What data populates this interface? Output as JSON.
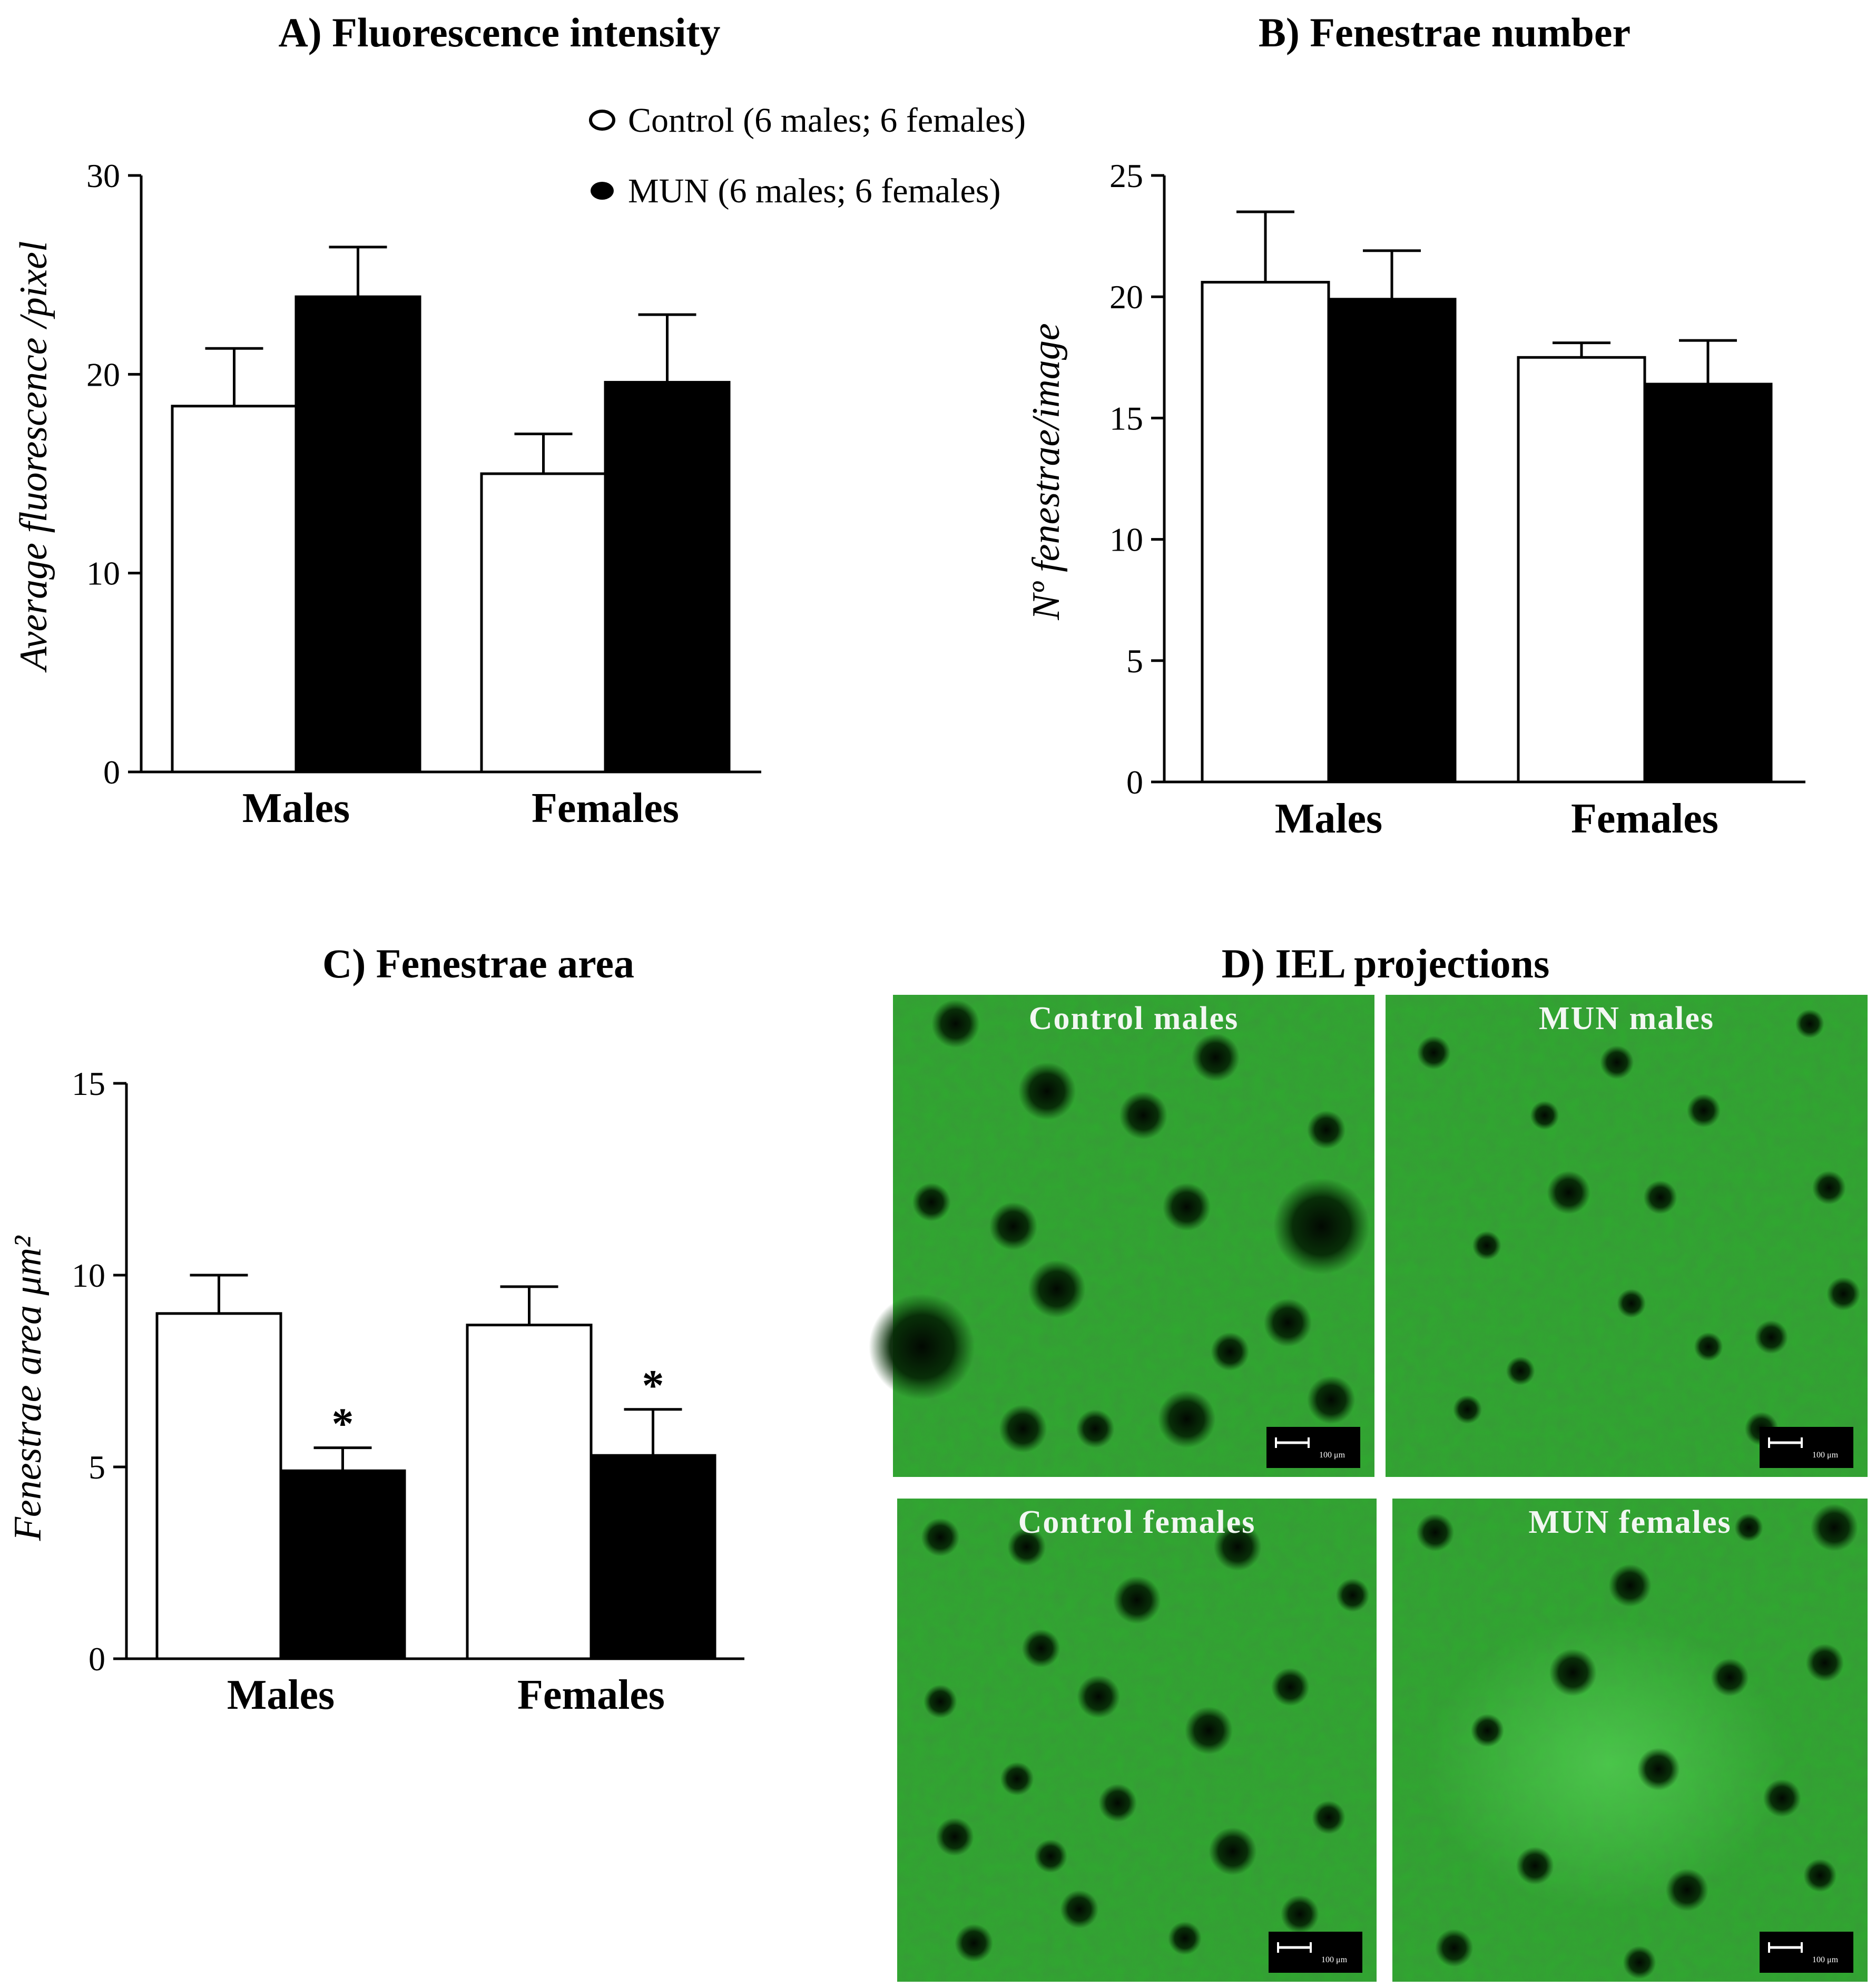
{
  "legend": {
    "control_label": "Control (6 males; 6 females)",
    "mun_label": "MUN (6 males; 6 females)"
  },
  "colors": {
    "control": "#ffffff",
    "mun": "#000000",
    "micrograph_green": "#2fa92f"
  },
  "chart_data": [
    {
      "id": "A",
      "type": "bar",
      "title": "A) Fluorescence  intensity",
      "ylabel": "Average fluorescence /pixel",
      "categories": [
        "Males",
        "Females"
      ],
      "ylim": [
        0,
        30
      ],
      "yticks": [
        0,
        10,
        20,
        30
      ],
      "series": [
        {
          "name": "Control (6 males; 6 females)",
          "values": [
            18.4,
            15.0
          ],
          "errors": [
            2.9,
            2.0
          ]
        },
        {
          "name": "MUN (6 males; 6 females)",
          "values": [
            23.9,
            19.6
          ],
          "errors": [
            2.5,
            3.4
          ]
        }
      ],
      "annotations": []
    },
    {
      "id": "B",
      "type": "bar",
      "title": "B) Fenestrae number",
      "ylabel": "Nº fenestrae/image",
      "categories": [
        "Males",
        "Females"
      ],
      "ylim": [
        0,
        25
      ],
      "yticks": [
        0,
        5,
        10,
        15,
        20,
        25
      ],
      "series": [
        {
          "name": "Control (6 males; 6 females)",
          "values": [
            20.6,
            17.5
          ],
          "errors": [
            2.9,
            0.6
          ]
        },
        {
          "name": "MUN (6 males; 6 females)",
          "values": [
            19.9,
            16.4
          ],
          "errors": [
            2.0,
            1.8
          ]
        }
      ],
      "annotations": []
    },
    {
      "id": "C",
      "type": "bar",
      "title": "C) Fenestrae area",
      "ylabel": "Fenestrae area μm²",
      "categories": [
        "Males",
        "Females"
      ],
      "ylim": [
        0,
        15
      ],
      "yticks": [
        0,
        5,
        10,
        15
      ],
      "series": [
        {
          "name": "Control (6 males; 6 females)",
          "values": [
            9.0,
            8.7
          ],
          "errors": [
            1.0,
            1.0
          ]
        },
        {
          "name": "MUN (6 males; 6 females)",
          "values": [
            4.9,
            5.3
          ],
          "errors": [
            0.6,
            1.2
          ]
        }
      ],
      "annotations": [
        {
          "category": "Males",
          "series": "MUN (6 males; 6 females)",
          "text": "*"
        },
        {
          "category": "Females",
          "series": "MUN (6 males; 6 females)",
          "text": "*"
        }
      ]
    }
  ],
  "panel_d": {
    "title": "D) IEL projections",
    "images": [
      {
        "label": "Control males",
        "scale_bar": "100 μm"
      },
      {
        "label": "MUN males",
        "scale_bar": "100 μm"
      },
      {
        "label": "Control females",
        "scale_bar": "100 μm"
      },
      {
        "label": "MUN females",
        "scale_bar": "100 μm"
      }
    ]
  }
}
